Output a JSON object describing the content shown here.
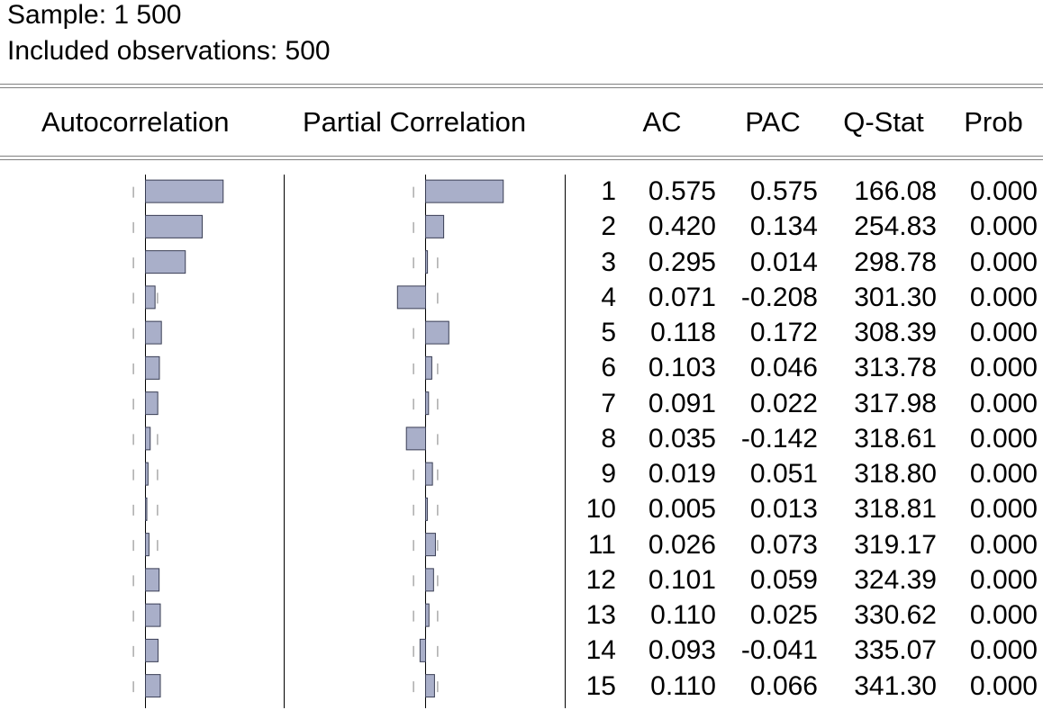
{
  "header": {
    "sample": "Sample: 1 500",
    "observations": "Included observations: 500"
  },
  "columns": {
    "autocorrelation": "Autocorrelation",
    "partial_correlation": "Partial Correlation",
    "ac": "AC",
    "pac": "PAC",
    "qstat": "Q-Stat",
    "prob": "Prob"
  },
  "colors": {
    "bar_fill": "#A9AFC9",
    "bar_stroke": "#3A3F55",
    "axis": "#000000",
    "band": "#808080",
    "rule": "#808080"
  },
  "chart_data": {
    "type": "table",
    "confidence_band": 0.0894,
    "rows": [
      {
        "lag": "1",
        "ac": "0.575",
        "pac": "0.575",
        "q": "166.08",
        "prob": "0.000"
      },
      {
        "lag": "2",
        "ac": "0.420",
        "pac": "0.134",
        "q": "254.83",
        "prob": "0.000"
      },
      {
        "lag": "3",
        "ac": "0.295",
        "pac": "0.014",
        "q": "298.78",
        "prob": "0.000"
      },
      {
        "lag": "4",
        "ac": "0.071",
        "pac": "-0.208",
        "q": "301.30",
        "prob": "0.000"
      },
      {
        "lag": "5",
        "ac": "0.118",
        "pac": "0.172",
        "q": "308.39",
        "prob": "0.000"
      },
      {
        "lag": "6",
        "ac": "0.103",
        "pac": "0.046",
        "q": "313.78",
        "prob": "0.000"
      },
      {
        "lag": "7",
        "ac": "0.091",
        "pac": "0.022",
        "q": "317.98",
        "prob": "0.000"
      },
      {
        "lag": "8",
        "ac": "0.035",
        "pac": "-0.142",
        "q": "318.61",
        "prob": "0.000"
      },
      {
        "lag": "9",
        "ac": "0.019",
        "pac": "0.051",
        "q": "318.80",
        "prob": "0.000"
      },
      {
        "lag": "10",
        "ac": "0.005",
        "pac": "0.013",
        "q": "318.81",
        "prob": "0.000"
      },
      {
        "lag": "11",
        "ac": "0.026",
        "pac": "0.073",
        "q": "319.17",
        "prob": "0.000"
      },
      {
        "lag": "12",
        "ac": "0.101",
        "pac": "0.059",
        "q": "324.39",
        "prob": "0.000"
      },
      {
        "lag": "13",
        "ac": "0.110",
        "pac": "0.025",
        "q": "330.62",
        "prob": "0.000"
      },
      {
        "lag": "14",
        "ac": "0.093",
        "pac": "-0.041",
        "q": "335.07",
        "prob": "0.000"
      },
      {
        "lag": "15",
        "ac": "0.110",
        "pac": "0.066",
        "q": "341.30",
        "prob": "0.000"
      }
    ]
  }
}
